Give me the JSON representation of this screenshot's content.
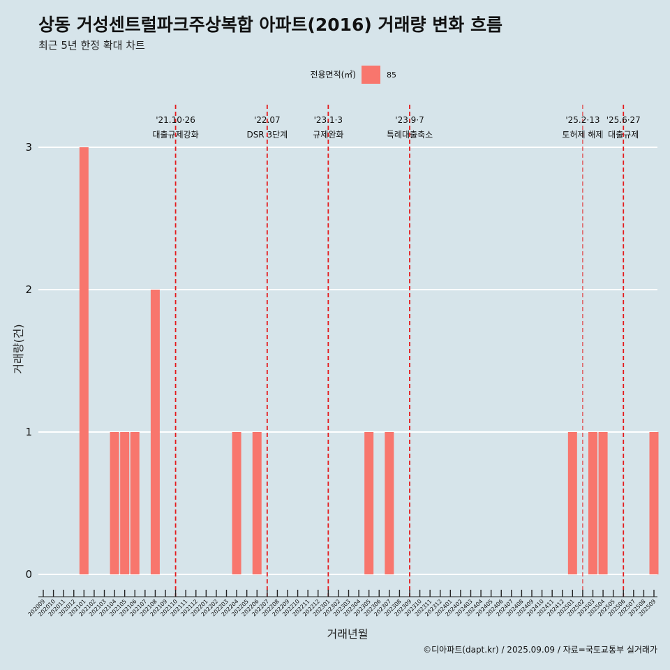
{
  "header": {
    "title": "상동 거성센트럴파크주상복합 아파트(2016) 거래량 변화 흐름",
    "subtitle": "최근 5년 한정 확대 차트"
  },
  "legend": {
    "title": "전용면적(㎡)",
    "label": "85",
    "color": "#f8766d"
  },
  "caption": "©디아파트(dapt.kr) / 2025.09.09 / 자료=국토교통부 실거래가",
  "colors": {
    "background": "#d6e4ea",
    "bar": "#f8766d",
    "grid": "#ffffff",
    "event_line": "#e41a1c"
  },
  "chart_data": {
    "type": "bar",
    "xlabel": "거래년월",
    "ylabel": "거래량(건)",
    "ylim": [
      0,
      3
    ],
    "yticks": [
      0,
      1,
      2,
      3
    ],
    "grid": "horizontal",
    "legend_position": "top",
    "categories": [
      "202009",
      "202010",
      "202011",
      "202012",
      "202101",
      "202102",
      "202103",
      "202104",
      "202105",
      "202106",
      "202107",
      "202108",
      "202109",
      "202110",
      "202111",
      "202112",
      "202201",
      "202202",
      "202203",
      "202204",
      "202205",
      "202206",
      "202207",
      "202208",
      "202209",
      "202210",
      "202211",
      "202212",
      "202301",
      "202302",
      "202303",
      "202304",
      "202305",
      "202306",
      "202307",
      "202308",
      "202309",
      "202310",
      "202311",
      "202312",
      "202401",
      "202402",
      "202403",
      "202404",
      "202405",
      "202406",
      "202407",
      "202408",
      "202409",
      "202410",
      "202411",
      "202412",
      "202501",
      "202502",
      "202503",
      "202504",
      "202505",
      "202506",
      "202507",
      "202508",
      "202509"
    ],
    "series": [
      {
        "name": "85",
        "values": [
          0,
          0,
          0,
          0,
          3,
          0,
          0,
          1,
          1,
          1,
          0,
          2,
          0,
          0,
          0,
          0,
          0,
          0,
          0,
          1,
          0,
          1,
          0,
          0,
          0,
          0,
          0,
          0,
          0,
          0,
          0,
          0,
          1,
          0,
          1,
          0,
          0,
          0,
          0,
          0,
          0,
          0,
          0,
          0,
          0,
          0,
          0,
          0,
          0,
          0,
          0,
          0,
          1,
          0,
          1,
          1,
          0,
          0,
          0,
          0,
          1
        ]
      }
    ],
    "events": [
      {
        "date": "'21.10·26",
        "label": "대출규제강화",
        "x": "202110",
        "style": "bold"
      },
      {
        "date": "'22.07",
        "label": "DSR 3단계",
        "x": "202207",
        "style": "bold"
      },
      {
        "date": "'23.1·3",
        "label": "규제완화",
        "x": "202301",
        "style": "bold"
      },
      {
        "date": "'23.9·7",
        "label": "특례대출축소",
        "x": "202309",
        "style": "bold"
      },
      {
        "date": "'25.2·13",
        "label": "토허제 해제",
        "x": "202502",
        "style": "thin"
      },
      {
        "date": "'25.6·27",
        "label": "대출규제",
        "x": "202506",
        "style": "bold"
      }
    ]
  }
}
